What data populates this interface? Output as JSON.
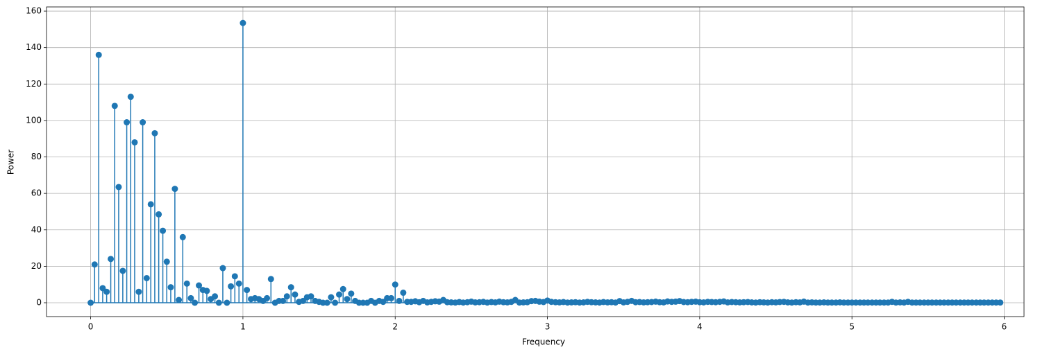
{
  "chart_data": {
    "type": "stem",
    "x_label": "Frequency",
    "y_label": "Power",
    "grid": true,
    "xlim": [
      -0.29,
      6.13
    ],
    "ylim": [
      -7.6,
      162.3
    ],
    "xticks": [
      0,
      1,
      2,
      3,
      4,
      5,
      6
    ],
    "yticks": [
      0,
      20,
      40,
      60,
      80,
      100,
      120,
      140,
      160
    ],
    "series": [
      {
        "color": "#1f77b4",
        "x": [
          0,
          0.026,
          0.053,
          0.079,
          0.105,
          0.132,
          0.158,
          0.184,
          0.211,
          0.237,
          0.263,
          0.289,
          0.316,
          0.342,
          0.368,
          0.395,
          0.421,
          0.447,
          0.474,
          0.5,
          0.526,
          0.553,
          0.579,
          0.605,
          0.632,
          0.658,
          0.684,
          0.711,
          0.737,
          0.763,
          0.789,
          0.816,
          0.842,
          0.868,
          0.895,
          0.921,
          0.947,
          0.974,
          1,
          1.026,
          1.053,
          1.079,
          1.105,
          1.132,
          1.158,
          1.184,
          1.211,
          1.237,
          1.263,
          1.289,
          1.316,
          1.342,
          1.368,
          1.395,
          1.421,
          1.447,
          1.474,
          1.5,
          1.526,
          1.553,
          1.579,
          1.605,
          1.632,
          1.658,
          1.684,
          1.711,
          1.737,
          1.763,
          1.789,
          1.816,
          1.842,
          1.868,
          1.895,
          1.921,
          1.947,
          1.974,
          2,
          2.026,
          2.053,
          2.079,
          2.105,
          2.132,
          2.158,
          2.184,
          2.211,
          2.237,
          2.263,
          2.289,
          2.316,
          2.342,
          2.368,
          2.395,
          2.421,
          2.447,
          2.474,
          2.5,
          2.526,
          2.553,
          2.579,
          2.605,
          2.632,
          2.658,
          2.684,
          2.711,
          2.737,
          2.763,
          2.789,
          2.816,
          2.842,
          2.868,
          2.895,
          2.921,
          2.947,
          2.974,
          3,
          3.026,
          3.053,
          3.079,
          3.105,
          3.132,
          3.158,
          3.184,
          3.211,
          3.237,
          3.263,
          3.289,
          3.316,
          3.342,
          3.368,
          3.395,
          3.421,
          3.447,
          3.474,
          3.5,
          3.526,
          3.553,
          3.579,
          3.605,
          3.632,
          3.658,
          3.684,
          3.711,
          3.737,
          3.763,
          3.789,
          3.816,
          3.842,
          3.868,
          3.895,
          3.921,
          3.947,
          3.974,
          4,
          4.026,
          4.053,
          4.079,
          4.105,
          4.132,
          4.158,
          4.184,
          4.211,
          4.237,
          4.263,
          4.289,
          4.316,
          4.342,
          4.368,
          4.395,
          4.421,
          4.447,
          4.474,
          4.5,
          4.526,
          4.553,
          4.579,
          4.605,
          4.632,
          4.658,
          4.684,
          4.711,
          4.737,
          4.763,
          4.789,
          4.816,
          4.842,
          4.868,
          4.895,
          4.921,
          4.947,
          4.974,
          5,
          5.026,
          5.053,
          5.079,
          5.105,
          5.132,
          5.158,
          5.184,
          5.211,
          5.237,
          5.263,
          5.289,
          5.316,
          5.342,
          5.368,
          5.395,
          5.421,
          5.447,
          5.474,
          5.5,
          5.526,
          5.553,
          5.579,
          5.605,
          5.632,
          5.658,
          5.684,
          5.711,
          5.737,
          5.763,
          5.789,
          5.816,
          5.842,
          5.868,
          5.895,
          5.921,
          5.947,
          5.974
        ],
        "values": [
          0,
          21,
          136,
          8,
          6,
          24,
          108,
          63.5,
          17.5,
          99,
          113,
          88,
          6,
          99,
          13.5,
          54,
          93,
          48.5,
          39.5,
          22.5,
          8.5,
          62.5,
          1.5,
          36,
          10.5,
          2.5,
          0,
          9.5,
          7,
          6.5,
          2,
          3.5,
          0,
          19,
          0,
          9,
          14.5,
          10.5,
          153.5,
          7,
          2,
          2.5,
          2,
          1,
          2.5,
          13,
          0,
          1,
          1,
          3.5,
          8.5,
          4.5,
          0.5,
          1,
          3,
          3.5,
          1,
          0.5,
          0,
          0,
          3,
          0,
          4.5,
          7.5,
          2,
          5,
          1,
          0,
          0,
          0,
          1,
          0,
          1,
          0.5,
          2.5,
          2.5,
          10,
          1,
          5.5,
          0.5,
          0.5,
          0.8,
          0.3,
          1,
          0.2,
          0.5,
          0.8,
          0.6,
          1.5,
          0.3,
          0.2,
          0.1,
          0.4,
          0.1,
          0.3,
          0.6,
          0.2,
          0.3,
          0.5,
          0.1,
          0.4,
          0.2,
          0.6,
          0.3,
          0.2,
          0.5,
          1.5,
          0.1,
          0.2,
          0.3,
          0.9,
          1,
          0.6,
          0.4,
          1.2,
          0.5,
          0.3,
          0.2,
          0.4,
          0.1,
          0.2,
          0.3,
          0.1,
          0.2,
          0.5,
          0.3,
          0.2,
          0.1,
          0.4,
          0.2,
          0.3,
          0.1,
          0.9,
          0.2,
          0.5,
          1,
          0.3,
          0.4,
          0.2,
          0.3,
          0.4,
          0.6,
          0.3,
          0.2,
          0.7,
          0.5,
          0.6,
          0.9,
          0.4,
          0.3,
          0.5,
          0.6,
          0.3,
          0.2,
          0.5,
          0.4,
          0.3,
          0.5,
          0.7,
          0.2,
          0.4,
          0.3,
          0.2,
          0.3,
          0.4,
          0.2,
          0.1,
          0.3,
          0.2,
          0.1,
          0.3,
          0.2,
          0.4,
          0.5,
          0.2,
          0.1,
          0.3,
          0.2,
          0.6,
          0.1,
          0.2,
          0.1,
          0.1,
          0.2,
          0.1,
          0.1,
          0.1,
          0.2,
          0.1,
          0.1,
          0.1,
          0.1,
          0.1,
          0.1,
          0.1,
          0.1,
          0.1,
          0.1,
          0.1,
          0.1,
          0.5,
          0.1,
          0.2,
          0.1,
          0.5,
          0.1,
          0.1,
          0.1,
          0.1,
          0.1,
          0.1,
          0.1,
          0.1,
          0.1,
          0.1,
          0.1,
          0.1,
          0.1,
          0.1,
          0.1,
          0.1,
          0.1,
          0.1,
          0.1,
          0.1,
          0.1,
          0.1,
          0.1
        ]
      }
    ]
  }
}
